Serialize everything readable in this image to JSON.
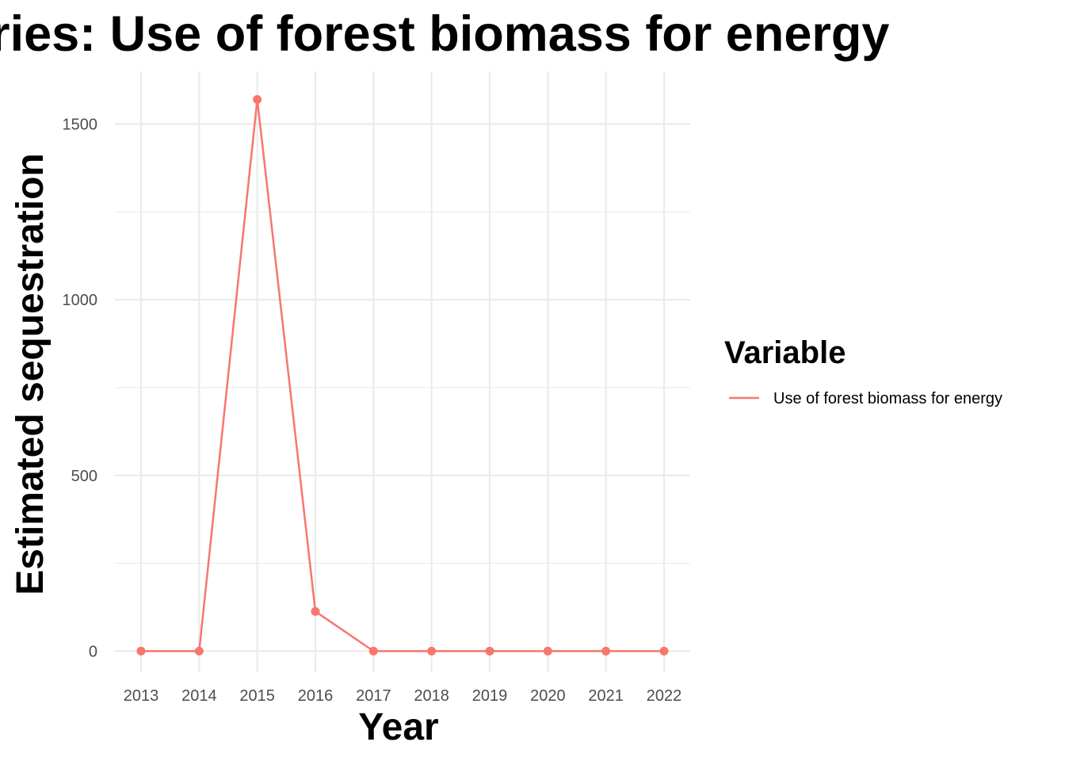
{
  "chart_data": {
    "type": "line",
    "title": "Time Series: Use of forest biomass for energy",
    "xlabel": "Year",
    "ylabel": "Estimated sequestration",
    "x": [
      2013,
      2014,
      2015,
      2016,
      2017,
      2018,
      2019,
      2020,
      2021,
      2022
    ],
    "series": [
      {
        "name": "Use of forest biomass for energy",
        "color": "#f8766d",
        "values": [
          0,
          0,
          1570,
          113,
          0,
          0,
          0,
          0,
          0,
          0
        ]
      }
    ],
    "ylim": [
      -60,
      1650
    ],
    "yticks": [
      0,
      500,
      1000,
      1500
    ],
    "ytick_labels": [
      "0",
      "500",
      "1000",
      "1500"
    ],
    "xtick_labels": [
      "2013",
      "2014",
      "2015",
      "2016",
      "2017",
      "2018",
      "2019",
      "2020",
      "2021",
      "2022"
    ],
    "legend_title": "Variable",
    "legend_position": "right",
    "grid": true
  }
}
